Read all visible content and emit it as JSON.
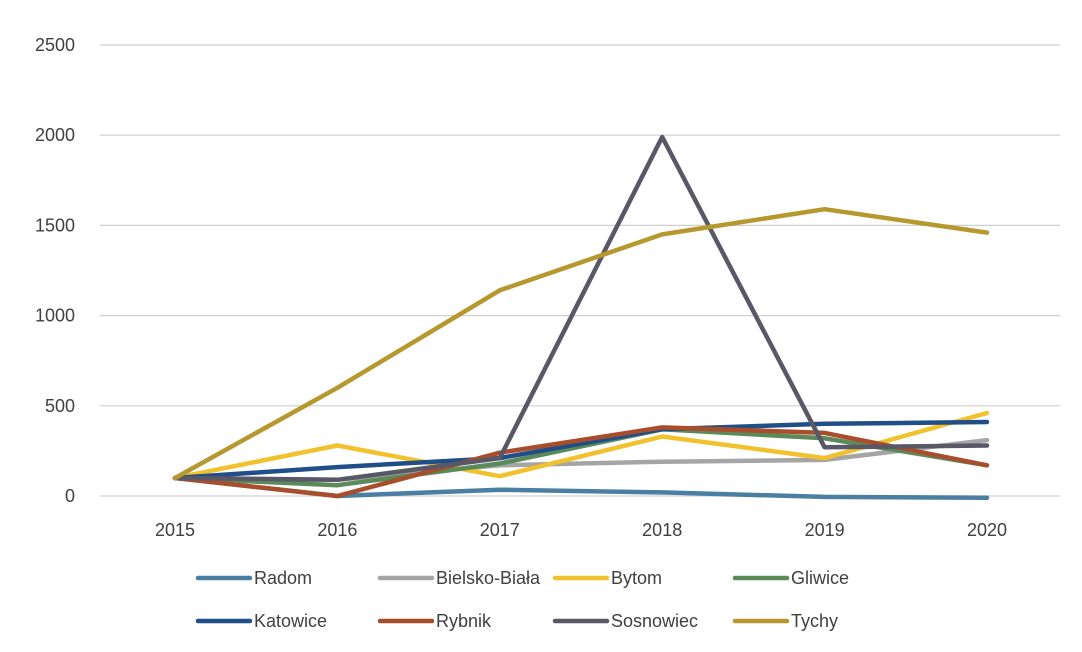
{
  "chart_data": {
    "type": "line",
    "categories": [
      "2015",
      "2016",
      "2017",
      "2018",
      "2019",
      "2020"
    ],
    "ylim": [
      0,
      2500
    ],
    "yticks": [
      0,
      500,
      1000,
      1500,
      2000,
      2500
    ],
    "grid": true,
    "legend_position": "bottom",
    "series": [
      {
        "name": "Radom",
        "color": "#4a7ea3",
        "values": [
          100,
          0,
          35,
          20,
          -5,
          -10
        ]
      },
      {
        "name": "Bielsko-Biała",
        "color": "#a5a5a5",
        "values": [
          100,
          90,
          170,
          190,
          200,
          310
        ]
      },
      {
        "name": "Bytom",
        "color": "#f2c12e",
        "values": [
          100,
          280,
          110,
          330,
          210,
          460
        ]
      },
      {
        "name": "Gliwice",
        "color": "#5b8a5a",
        "values": [
          100,
          60,
          180,
          370,
          320,
          170
        ]
      },
      {
        "name": "Katowice",
        "color": "#1f4e89",
        "values": [
          100,
          160,
          210,
          370,
          400,
          410
        ]
      },
      {
        "name": "Rybnik",
        "color": "#a84e2c",
        "values": [
          100,
          0,
          240,
          380,
          350,
          170
        ]
      },
      {
        "name": "Sosnowiec",
        "color": "#585866",
        "values": [
          100,
          90,
          210,
          1990,
          270,
          280
        ]
      },
      {
        "name": "Tychy",
        "color": "#b6982f",
        "values": [
          100,
          600,
          1140,
          1450,
          1590,
          1460
        ]
      }
    ]
  }
}
